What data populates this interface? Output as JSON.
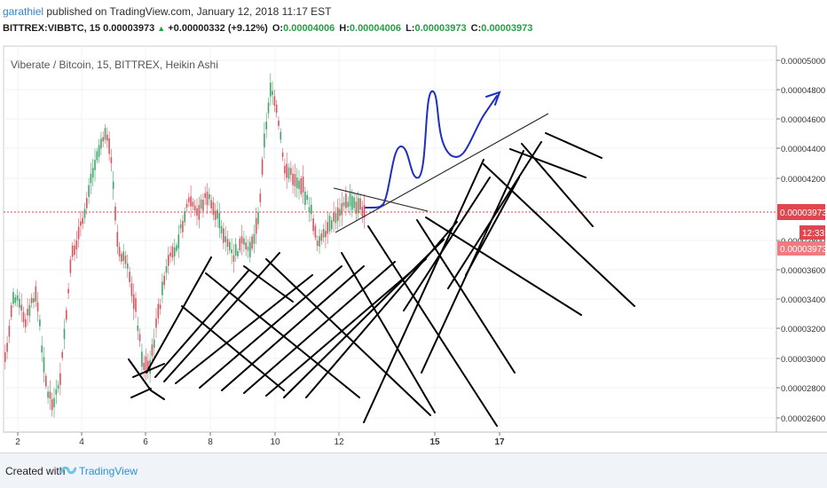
{
  "header": {
    "user": "garathiel",
    "published_text": " published on TradingView.com, January 12, 2018 11:17 EST",
    "symbol": "BITTREX:VIBBTC, 15",
    "last": "0.00003973",
    "change": "+0.00000332 (+9.12%)",
    "o_label": "O:",
    "o_value": "0.00004006",
    "h_label": "H:",
    "h_value": "0.00004006",
    "l_label": "L:",
    "l_value": "0.00003973",
    "c_label": "C:",
    "c_value": "0.00003973"
  },
  "chart_data": {
    "type": "candlestick",
    "title": "Viberate / Bitcoin, 15, BITTREX, Heikin Ashi",
    "ylim": [
      2.5e-06,
      5.1e-06
    ],
    "y_ticks": [
      "0.00005000",
      "0.00004800",
      "0.00004600",
      "0.00004400",
      "0.00004200",
      "0.00003973",
      "0.00003800",
      "0.00003600",
      "0.00003400",
      "0.00003200",
      "0.00003000",
      "0.00002800",
      "0.00002600"
    ],
    "x_ticks": [
      "2",
      "4",
      "6",
      "8",
      "10",
      "12",
      "15",
      "17"
    ],
    "current_price_label": "0.00003973",
    "countdown_label": "12:33",
    "bid_label": "0.00003973",
    "colors": {
      "up": "#3fa66b",
      "down": "#d9535f",
      "price_line": "#e0464e",
      "drawing": "#000000",
      "forecast": "#1f2ec2"
    }
  },
  "footer": {
    "created_with": "Created with",
    "brand": "TradingView"
  }
}
